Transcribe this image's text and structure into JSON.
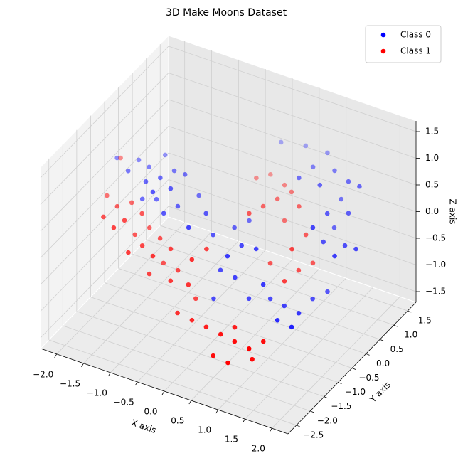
{
  "chart_data": {
    "type": "scatter3d",
    "title": "3D Make Moons Dataset",
    "xlabel": "X axis",
    "ylabel": "Y axis",
    "zlabel": "Z axis",
    "xlim": [
      -2.3,
      2.3
    ],
    "ylim": [
      -2.8,
      1.8
    ],
    "zlim": [
      -1.7,
      1.7
    ],
    "xticks": [
      {
        "value": -2,
        "label": "−2.0"
      },
      {
        "value": -1.5,
        "label": "−1.5"
      },
      {
        "value": -1,
        "label": "−1.0"
      },
      {
        "value": -0.5,
        "label": "−0.5"
      },
      {
        "value": 0,
        "label": "0.0"
      },
      {
        "value": 0.5,
        "label": "0.5"
      },
      {
        "value": 1,
        "label": "1.0"
      },
      {
        "value": 1.5,
        "label": "1.5"
      },
      {
        "value": 2,
        "label": "2.0"
      }
    ],
    "yticks": [
      {
        "value": -2.5,
        "label": "−2.5"
      },
      {
        "value": -2,
        "label": "−2.0"
      },
      {
        "value": -1.5,
        "label": "−1.5"
      },
      {
        "value": -1,
        "label": "−1.0"
      },
      {
        "value": -0.5,
        "label": "−0.5"
      },
      {
        "value": 0,
        "label": "0.0"
      },
      {
        "value": 0.5,
        "label": "0.5"
      },
      {
        "value": 1,
        "label": "1.0"
      },
      {
        "value": 1.5,
        "label": "1.5"
      }
    ],
    "zticks": [
      {
        "value": -1.5,
        "label": "−1.5"
      },
      {
        "value": -1,
        "label": "−1.0"
      },
      {
        "value": -0.5,
        "label": "−0.5"
      },
      {
        "value": 0,
        "label": "0.0"
      },
      {
        "value": 0.5,
        "label": "0.5"
      },
      {
        "value": 1,
        "label": "1.0"
      },
      {
        "value": 1.5,
        "label": "1.5"
      }
    ],
    "grid": true,
    "legend": "upper right",
    "series": [
      {
        "name": "Class 0",
        "color": "#0000ff",
        "x": [
          -2.01,
          -1.68,
          -1.44,
          -1.38,
          -1.04,
          -1.14,
          -1.29,
          -0.85,
          -0.84,
          -1.68,
          -1.05,
          -1.39,
          -1.19,
          -0.8,
          -0.65,
          -0.9,
          -0.36,
          -0.31,
          -0.21,
          -0.01,
          0.1,
          0.28,
          0.33,
          0.58,
          0.01,
          0.31,
          0.8,
          0.73,
          1.02,
          1.32,
          1.32,
          1.43,
          1.12,
          1.41,
          0.43,
          -0.06,
          0.06,
          0.45,
          0.85,
          0.84,
          1.19,
          1.53,
          1.75,
          1.18,
          0.79,
          1.38,
          1.38,
          1.67,
          1.37,
          1.38,
          1.42,
          1.77,
          1.77,
          1.97
        ],
        "y": [
          -0.61,
          -0.47,
          -0.56,
          -0.1,
          -0.43,
          -0.74,
          -0.97,
          -0.93,
          -0.43,
          -0.85,
          -1.18,
          -0.9,
          -0.78,
          -0.77,
          -0.3,
          -1.08,
          -1.23,
          -0.7,
          -0.64,
          -0.26,
          0.06,
          -1.07,
          -0.66,
          -0.62,
          -0.8,
          -0.86,
          -0.79,
          -0.4,
          -0.46,
          -0.52,
          -0.02,
          0.3,
          -0.9,
          -0.95,
          -0.59,
          -0.91,
          1.28,
          1.41,
          1.42,
          0.92,
          1.02,
          0.86,
          0.83,
          0.51,
          0.51,
          0.89,
          0.39,
          0.59,
          -0.11,
          0.64,
          0.17,
          -0.1,
          0.27,
          0.28
        ],
        "z": [
          0.8,
          0.8,
          0.8,
          0.8,
          0.8,
          0.8,
          0.8,
          0.8,
          0.8,
          0.8,
          0.8,
          0.4,
          0.4,
          0.4,
          0.4,
          0.4,
          0.4,
          0.4,
          0,
          0,
          0,
          0,
          0,
          0,
          -0.5,
          -0.5,
          -0.5,
          -1,
          -1,
          -1,
          -1,
          -1,
          -1,
          -1,
          -1,
          -1,
          0.8,
          0.8,
          0.8,
          0.8,
          0.8,
          0.8,
          0.8,
          0.8,
          0.8,
          0.4,
          0.4,
          0.4,
          0.4,
          0,
          0,
          0,
          0,
          0
        ]
      },
      {
        "name": "Class 1",
        "color": "#ff0000",
        "x": [
          -1.93,
          -1.64,
          -1.49,
          -1.2,
          -1.35,
          -1.4,
          -1.96,
          -1.69,
          -1.3,
          -1.19,
          -0.9,
          -1.05,
          -1.15,
          -0.76,
          -0.61,
          -0.11,
          -0.17,
          -0.88,
          -0.58,
          -0.93,
          -0.54,
          -0.24,
          -0.09,
          0.06,
          0.4,
          0.59,
          0.49,
          0.39,
          0.89,
          0.29,
          0.59,
          1.08,
          1.08,
          1.1,
          1.2,
          1.05,
          0.61,
          -0.37,
          -0.07,
          0.22,
          0.52,
          0.81,
          1.11,
          1.21,
          -0.31,
          0.62,
          0.49,
          0.79,
          1.08
        ],
        "y": [
          -1.13,
          -1.32,
          -1.09,
          -1.28,
          -1.62,
          -1.91,
          -0.58,
          -1.72,
          -1.34,
          -1.03,
          -1.21,
          -1.56,
          -1.87,
          -1.74,
          -1.39,
          -1.07,
          -1.48,
          -1.13,
          -1.19,
          -1.54,
          -1.53,
          -1.47,
          0.68,
          0.9,
          0.75,
          0.63,
          0.32,
          0,
          0.32,
          -0.31,
          0.38,
          0.2,
          -0.3,
          -0.1,
          0.22,
          -0.51,
          -0.17,
          -1.61,
          -1.67,
          -1.72,
          -1.78,
          -1.84,
          -1.9,
          -1.58,
          -1.07,
          -1.47,
          -1.99,
          -2.04,
          -1.73
        ],
        "z": [
          0.4,
          0.4,
          0.4,
          0.4,
          0.4,
          0.4,
          0.8,
          0.4,
          0,
          0,
          0,
          0,
          0,
          0,
          0,
          0,
          0,
          -0.5,
          -0.5,
          -0.5,
          -0.5,
          -0.5,
          0.4,
          0.4,
          0.4,
          0.4,
          0.4,
          0.4,
          0.4,
          0.4,
          0,
          0,
          0,
          -0.5,
          -0.5,
          -0.5,
          -0.5,
          -1,
          -1,
          -1,
          -1,
          -1,
          -1,
          -1,
          -1,
          -1,
          -1.3,
          -1.3,
          -1.3
        ]
      }
    ]
  }
}
